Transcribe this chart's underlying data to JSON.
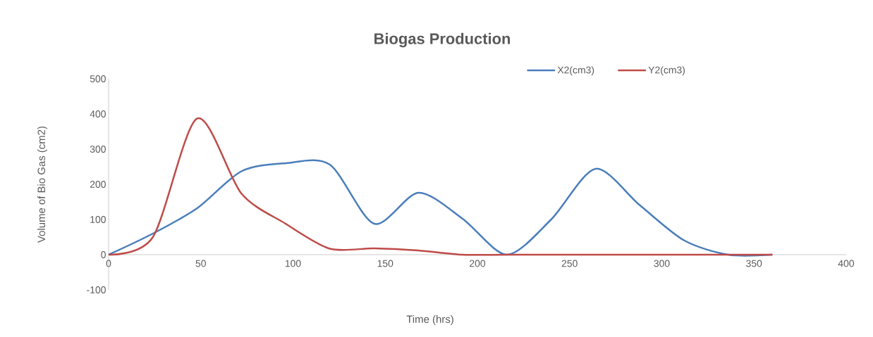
{
  "chart_data": {
    "type": "line",
    "title": "Biogas Production",
    "xlabel": "Time (hrs)",
    "ylabel": "Volume of Bio Gas (cm2)",
    "x": [
      0,
      24,
      48,
      72,
      96,
      120,
      144,
      168,
      192,
      216,
      240,
      264,
      288,
      312,
      336,
      360
    ],
    "series": [
      {
        "name": "X2(cm3)",
        "color": "#4a7ebb",
        "values": [
          0,
          60,
          132,
          237,
          260,
          256,
          88,
          176,
          102,
          0,
          100,
          244,
          141,
          41,
          0,
          0
        ]
      },
      {
        "name": "Y2(cm3)",
        "color": "#be4b48",
        "values": [
          0,
          50,
          387,
          174,
          88,
          17,
          18,
          12,
          0,
          0,
          0,
          0,
          0,
          0,
          0,
          0
        ]
      }
    ],
    "xlim": [
      0,
      400
    ],
    "xticks": [
      0,
      50,
      100,
      150,
      200,
      250,
      300,
      350,
      400
    ],
    "ylim": [
      -100,
      500
    ],
    "yticks": [
      -100,
      0,
      100,
      200,
      300,
      400,
      500
    ],
    "legend": "top right",
    "grid": false,
    "marker": "none",
    "line_style": "solid"
  }
}
